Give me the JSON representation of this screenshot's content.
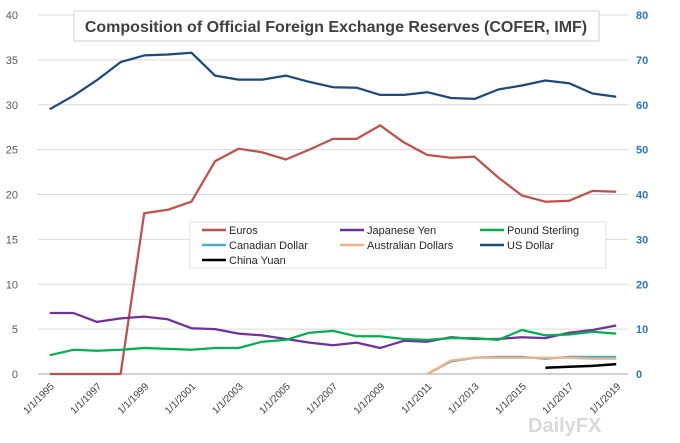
{
  "chart_data": {
    "type": "line",
    "title": "Composition  of Official Foreign Exchange Reserves (COFER, IMF)",
    "x": [
      "1/1/1995",
      "1/1/1996",
      "1/1/1997",
      "1/1/1998",
      "1/1/1999",
      "1/1/2000",
      "1/1/2001",
      "1/1/2002",
      "1/1/2003",
      "1/1/2004",
      "1/1/2005",
      "1/1/2006",
      "1/1/2007",
      "1/1/2008",
      "1/1/2009",
      "1/1/2010",
      "1/1/2011",
      "1/1/2012",
      "1/1/2013",
      "1/1/2014",
      "1/1/2015",
      "1/1/2016",
      "1/1/2017",
      "1/1/2018",
      "1/1/2019"
    ],
    "x_tick_labels": [
      "1/1/1995",
      "1/1/1997",
      "1/1/1999",
      "1/1/2001",
      "1/1/2003",
      "1/1/2005",
      "1/1/2007",
      "1/1/2009",
      "1/1/2011",
      "1/1/2013",
      "1/1/2015",
      "1/1/2017",
      "1/1/2019"
    ],
    "y_left": {
      "ticks": [
        "0",
        "5",
        "10",
        "15",
        "20",
        "25",
        "30",
        "35",
        "40"
      ],
      "ylim": [
        0,
        40
      ]
    },
    "y_right": {
      "ticks": [
        "0",
        "10",
        "20",
        "30",
        "40",
        "50",
        "60",
        "70",
        "80"
      ],
      "ylim": [
        0,
        80
      ]
    },
    "grid": true,
    "legend_position": "center-right inside plot",
    "series": [
      {
        "name": "Euros",
        "color": "#c0504d",
        "axis": "left",
        "values": [
          0,
          0,
          0,
          0,
          17.9,
          18.3,
          19.2,
          23.7,
          25.1,
          24.7,
          23.9,
          25.0,
          26.2,
          26.2,
          27.7,
          25.8,
          24.4,
          24.1,
          24.2,
          21.9,
          19.9,
          19.2,
          19.3,
          20.4,
          20.3
        ]
      },
      {
        "name": "Japanese Yen",
        "color": "#7030a0",
        "axis": "left",
        "values": [
          6.8,
          6.8,
          5.8,
          6.2,
          6.4,
          6.1,
          5.1,
          5.0,
          4.5,
          4.3,
          3.9,
          3.5,
          3.2,
          3.5,
          2.9,
          3.7,
          3.6,
          4.1,
          3.9,
          3.9,
          4.1,
          4.0,
          4.6,
          4.9,
          5.4
        ]
      },
      {
        "name": "Pound Sterling",
        "color": "#00b050",
        "axis": "left",
        "values": [
          2.1,
          2.7,
          2.6,
          2.7,
          2.9,
          2.8,
          2.7,
          2.9,
          2.9,
          3.6,
          3.8,
          4.6,
          4.8,
          4.2,
          4.2,
          3.9,
          3.8,
          4.0,
          4.0,
          3.8,
          4.9,
          4.3,
          4.4,
          4.7,
          4.5
        ]
      },
      {
        "name": "Canadian Dollar",
        "color": "#4bacc6",
        "axis": "left",
        "values": [
          null,
          null,
          null,
          null,
          null,
          null,
          null,
          null,
          null,
          null,
          null,
          null,
          null,
          null,
          null,
          null,
          0,
          1.4,
          1.8,
          1.9,
          1.9,
          1.7,
          1.9,
          1.9,
          1.9
        ]
      },
      {
        "name": "Australian Dollars",
        "color": "#f4b183",
        "axis": "left",
        "values": [
          null,
          null,
          null,
          null,
          null,
          null,
          null,
          null,
          null,
          null,
          null,
          null,
          null,
          null,
          null,
          null,
          0,
          1.5,
          1.8,
          1.8,
          1.8,
          1.8,
          1.8,
          1.7,
          1.7
        ]
      },
      {
        "name": "US Dollar",
        "color": "#1f497d",
        "axis": "right",
        "values": [
          59,
          62,
          65.5,
          69.5,
          71,
          71.2,
          71.6,
          66.5,
          65.6,
          65.6,
          66.5,
          65.1,
          63.9,
          63.8,
          62.2,
          62.2,
          62.8,
          61.5,
          61.3,
          63.4,
          64.3,
          65.4,
          64.8,
          62.5,
          61.8
        ]
      },
      {
        "name": "China Yuan",
        "color": "#000000",
        "axis": "left",
        "values": [
          null,
          null,
          null,
          null,
          null,
          null,
          null,
          null,
          null,
          null,
          null,
          null,
          null,
          null,
          null,
          null,
          null,
          null,
          null,
          null,
          null,
          0.7,
          0.8,
          0.9,
          1.1
        ]
      }
    ]
  },
  "watermark": "DailyFX"
}
